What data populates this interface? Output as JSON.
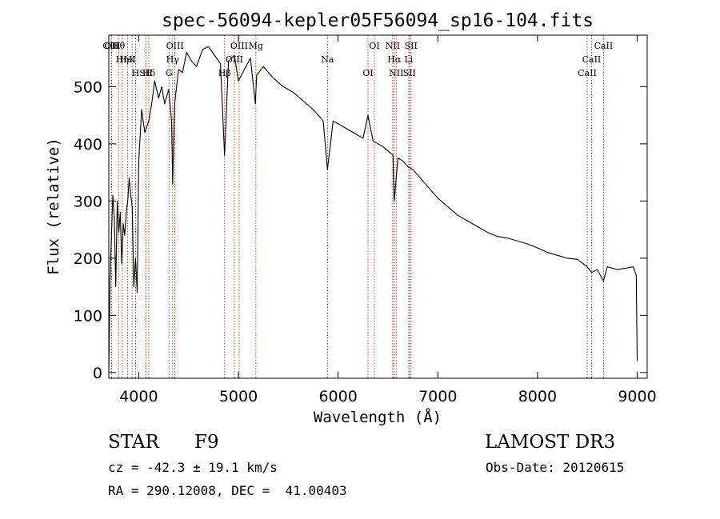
{
  "chart_data": {
    "type": "line",
    "title": "spec-56094-kepler05F56094_sp16-104.fits",
    "xlabel": "Wavelength (Å)",
    "ylabel": "Flux (relative)",
    "xlim": [
      3700,
      9100
    ],
    "ylim": [
      -10,
      590
    ],
    "xticks": [
      4000,
      5000,
      6000,
      7000,
      8000,
      9000
    ],
    "yticks": [
      0,
      100,
      200,
      300,
      400,
      500
    ],
    "series": [
      {
        "name": "flux",
        "x": [
          3700,
          3712,
          3725,
          3740,
          3755,
          3770,
          3785,
          3800,
          3815,
          3830,
          3845,
          3860,
          3875,
          3890,
          3905,
          3920,
          3935,
          3950,
          3968,
          3985,
          4000,
          4030,
          4060,
          4101,
          4130,
          4160,
          4200,
          4230,
          4260,
          4300,
          4330,
          4340,
          4360,
          4400,
          4440,
          4480,
          4530,
          4580,
          4640,
          4700,
          4760,
          4820,
          4861,
          4900,
          4960,
          5000,
          5060,
          5120,
          5170,
          5183,
          5250,
          5350,
          5450,
          5550,
          5650,
          5750,
          5850,
          5893,
          5950,
          6050,
          6150,
          6250,
          6300,
          6350,
          6450,
          6550,
          6563,
          6600,
          6650,
          6700,
          6750,
          6800,
          6900,
          7000,
          7100,
          7200,
          7300,
          7400,
          7500,
          7600,
          7700,
          7800,
          7900,
          8000,
          8100,
          8200,
          8300,
          8400,
          8498,
          8542,
          8600,
          8662,
          8700,
          8800,
          8900,
          8960,
          8990,
          9000
        ],
        "y": [
          0,
          160,
          230,
          310,
          270,
          150,
          300,
          245,
          280,
          190,
          260,
          240,
          280,
          300,
          340,
          310,
          290,
          150,
          200,
          140,
          370,
          460,
          420,
          440,
          470,
          510,
          480,
          500,
          470,
          495,
          440,
          330,
          470,
          530,
          525,
          560,
          545,
          535,
          565,
          570,
          555,
          540,
          380,
          545,
          555,
          510,
          530,
          550,
          470,
          520,
          535,
          515,
          500,
          490,
          475,
          460,
          440,
          355,
          440,
          430,
          420,
          410,
          450,
          405,
          395,
          380,
          300,
          375,
          370,
          360,
          355,
          345,
          325,
          305,
          290,
          275,
          265,
          255,
          245,
          238,
          235,
          230,
          225,
          218,
          210,
          205,
          200,
          198,
          185,
          175,
          180,
          160,
          185,
          180,
          183,
          185,
          170,
          20
        ]
      }
    ],
    "spectral_lines": [
      {
        "label": "Hθ",
        "wavelength": 3798
      },
      {
        "label": "K",
        "wavelength": 3934
      },
      {
        "label": "Hδ",
        "wavelength": 4101
      },
      {
        "label": "OII",
        "wavelength": 3727
      },
      {
        "label": "HeI",
        "wavelength": 3889
      },
      {
        "label": "SII",
        "wavelength": 4072
      },
      {
        "label": "OIII",
        "wavelength": 3727
      },
      {
        "label": "Hη",
        "wavelength": 3835
      },
      {
        "label": "H",
        "wavelength": 3968
      },
      {
        "label": "OIII",
        "wavelength": 4363
      },
      {
        "label": "Hγ",
        "wavelength": 4340
      },
      {
        "label": "G",
        "wavelength": 4304
      },
      {
        "label": "OIII",
        "wavelength": 5007
      },
      {
        "label": "OIII",
        "wavelength": 4959
      },
      {
        "label": "Hβ",
        "wavelength": 4861
      },
      {
        "label": "Mg",
        "wavelength": 5175
      },
      {
        "label": "Na",
        "wavelength": 5893
      },
      {
        "label": "OI",
        "wavelength": 6300
      },
      {
        "label": "OI",
        "wavelength": 6364
      },
      {
        "label": "Hα",
        "wavelength": 6563
      },
      {
        "label": "SII",
        "wavelength": 6716
      },
      {
        "label": "NII",
        "wavelength": 6548
      },
      {
        "label": "Li",
        "wavelength": 6708
      },
      {
        "label": "NII",
        "wavelength": 6583
      },
      {
        "label": "SII",
        "wavelength": 6731
      },
      {
        "label": "CaII",
        "wavelength": 8542
      },
      {
        "label": "CaII",
        "wavelength": 8498
      },
      {
        "label": "CaII",
        "wavelength": 8662
      }
    ]
  },
  "info": {
    "object_class": "STAR",
    "subclass": "F9",
    "survey": "LAMOST DR3",
    "redshift": "cz = -42.3 ± 19.1 km/s",
    "obs_date": "Obs-Date: 20120615",
    "coords": "RA = 290.12008, DEC =  41.00403"
  },
  "colors": {
    "line_marker": "#c0392b",
    "spectrum": "#000000",
    "axes": "#000000"
  }
}
